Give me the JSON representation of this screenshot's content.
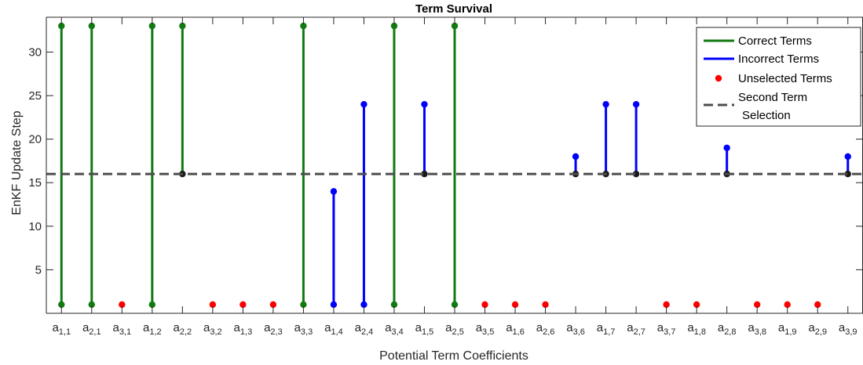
{
  "chart_data": {
    "type": "stem",
    "title": "Term Survival",
    "xlabel": "Potential Term Coefficients",
    "ylabel": "EnKF Update Step",
    "ylim": [
      0,
      34
    ],
    "yticks": [
      5,
      10,
      15,
      20,
      25,
      30
    ],
    "selection_line": 16,
    "categories": [
      {
        "base": "a",
        "sub": "1,1",
        "status": "correct",
        "start": 1,
        "end": 33
      },
      {
        "base": "a",
        "sub": "2,1",
        "status": "correct",
        "start": 1,
        "end": 33
      },
      {
        "base": "a",
        "sub": "3,1",
        "status": "unselected",
        "start": 1,
        "end": 1
      },
      {
        "base": "a",
        "sub": "1,2",
        "status": "correct",
        "start": 1,
        "end": 33
      },
      {
        "base": "a",
        "sub": "2,2",
        "status": "correct",
        "start": 16,
        "end": 33
      },
      {
        "base": "a",
        "sub": "3,2",
        "status": "unselected",
        "start": 1,
        "end": 1
      },
      {
        "base": "a",
        "sub": "1,3",
        "status": "unselected",
        "start": 1,
        "end": 1
      },
      {
        "base": "a",
        "sub": "2,3",
        "status": "unselected",
        "start": 1,
        "end": 1
      },
      {
        "base": "a",
        "sub": "3,3",
        "status": "correct",
        "start": 1,
        "end": 33
      },
      {
        "base": "a",
        "sub": "1,4",
        "status": "incorrect",
        "start": 1,
        "end": 14
      },
      {
        "base": "a",
        "sub": "2,4",
        "status": "incorrect",
        "start": 1,
        "end": 24
      },
      {
        "base": "a",
        "sub": "3,4",
        "status": "correct",
        "start": 1,
        "end": 33
      },
      {
        "base": "a",
        "sub": "1,5",
        "status": "incorrect",
        "start": 16,
        "end": 24
      },
      {
        "base": "a",
        "sub": "2,5",
        "status": "correct",
        "start": 1,
        "end": 33
      },
      {
        "base": "a",
        "sub": "3,5",
        "status": "unselected",
        "start": 1,
        "end": 1
      },
      {
        "base": "a",
        "sub": "1,6",
        "status": "unselected",
        "start": 1,
        "end": 1
      },
      {
        "base": "a",
        "sub": "2,6",
        "status": "unselected",
        "start": 1,
        "end": 1
      },
      {
        "base": "a",
        "sub": "3,6",
        "status": "incorrect",
        "start": 16,
        "end": 18
      },
      {
        "base": "a",
        "sub": "1,7",
        "status": "incorrect",
        "start": 16,
        "end": 24
      },
      {
        "base": "a",
        "sub": "2,7",
        "status": "incorrect",
        "start": 16,
        "end": 24
      },
      {
        "base": "a",
        "sub": "3,7",
        "status": "unselected",
        "start": 1,
        "end": 1
      },
      {
        "base": "a",
        "sub": "1,8",
        "status": "unselected",
        "start": 1,
        "end": 1
      },
      {
        "base": "a",
        "sub": "2,8",
        "status": "incorrect",
        "start": 16,
        "end": 19
      },
      {
        "base": "a",
        "sub": "3,8",
        "status": "unselected",
        "start": 1,
        "end": 1
      },
      {
        "base": "a",
        "sub": "1,9",
        "status": "unselected",
        "start": 1,
        "end": 1
      },
      {
        "base": "a",
        "sub": "2,9",
        "status": "unselected",
        "start": 1,
        "end": 1
      },
      {
        "base": "a",
        "sub": "3,9",
        "status": "incorrect",
        "start": 16,
        "end": 18
      }
    ],
    "legend": {
      "placement": "top-right",
      "entries": [
        {
          "label": "Correct Terms",
          "kind": "line",
          "color": "#117a11"
        },
        {
          "label": "Incorrect Terms",
          "kind": "line",
          "color": "#0000ff"
        },
        {
          "label": "Unselected Terms",
          "kind": "dot",
          "color": "#ff0000"
        },
        {
          "label_lines": [
            "Second Term",
            "Selection"
          ],
          "kind": "dash",
          "color": "#4d4d4d"
        }
      ]
    },
    "colors": {
      "correct": "#117a11",
      "incorrect": "#0000ff",
      "unselected": "#ff0000",
      "selection": "#4d4d4d",
      "junction": "#1a1a1a"
    }
  }
}
